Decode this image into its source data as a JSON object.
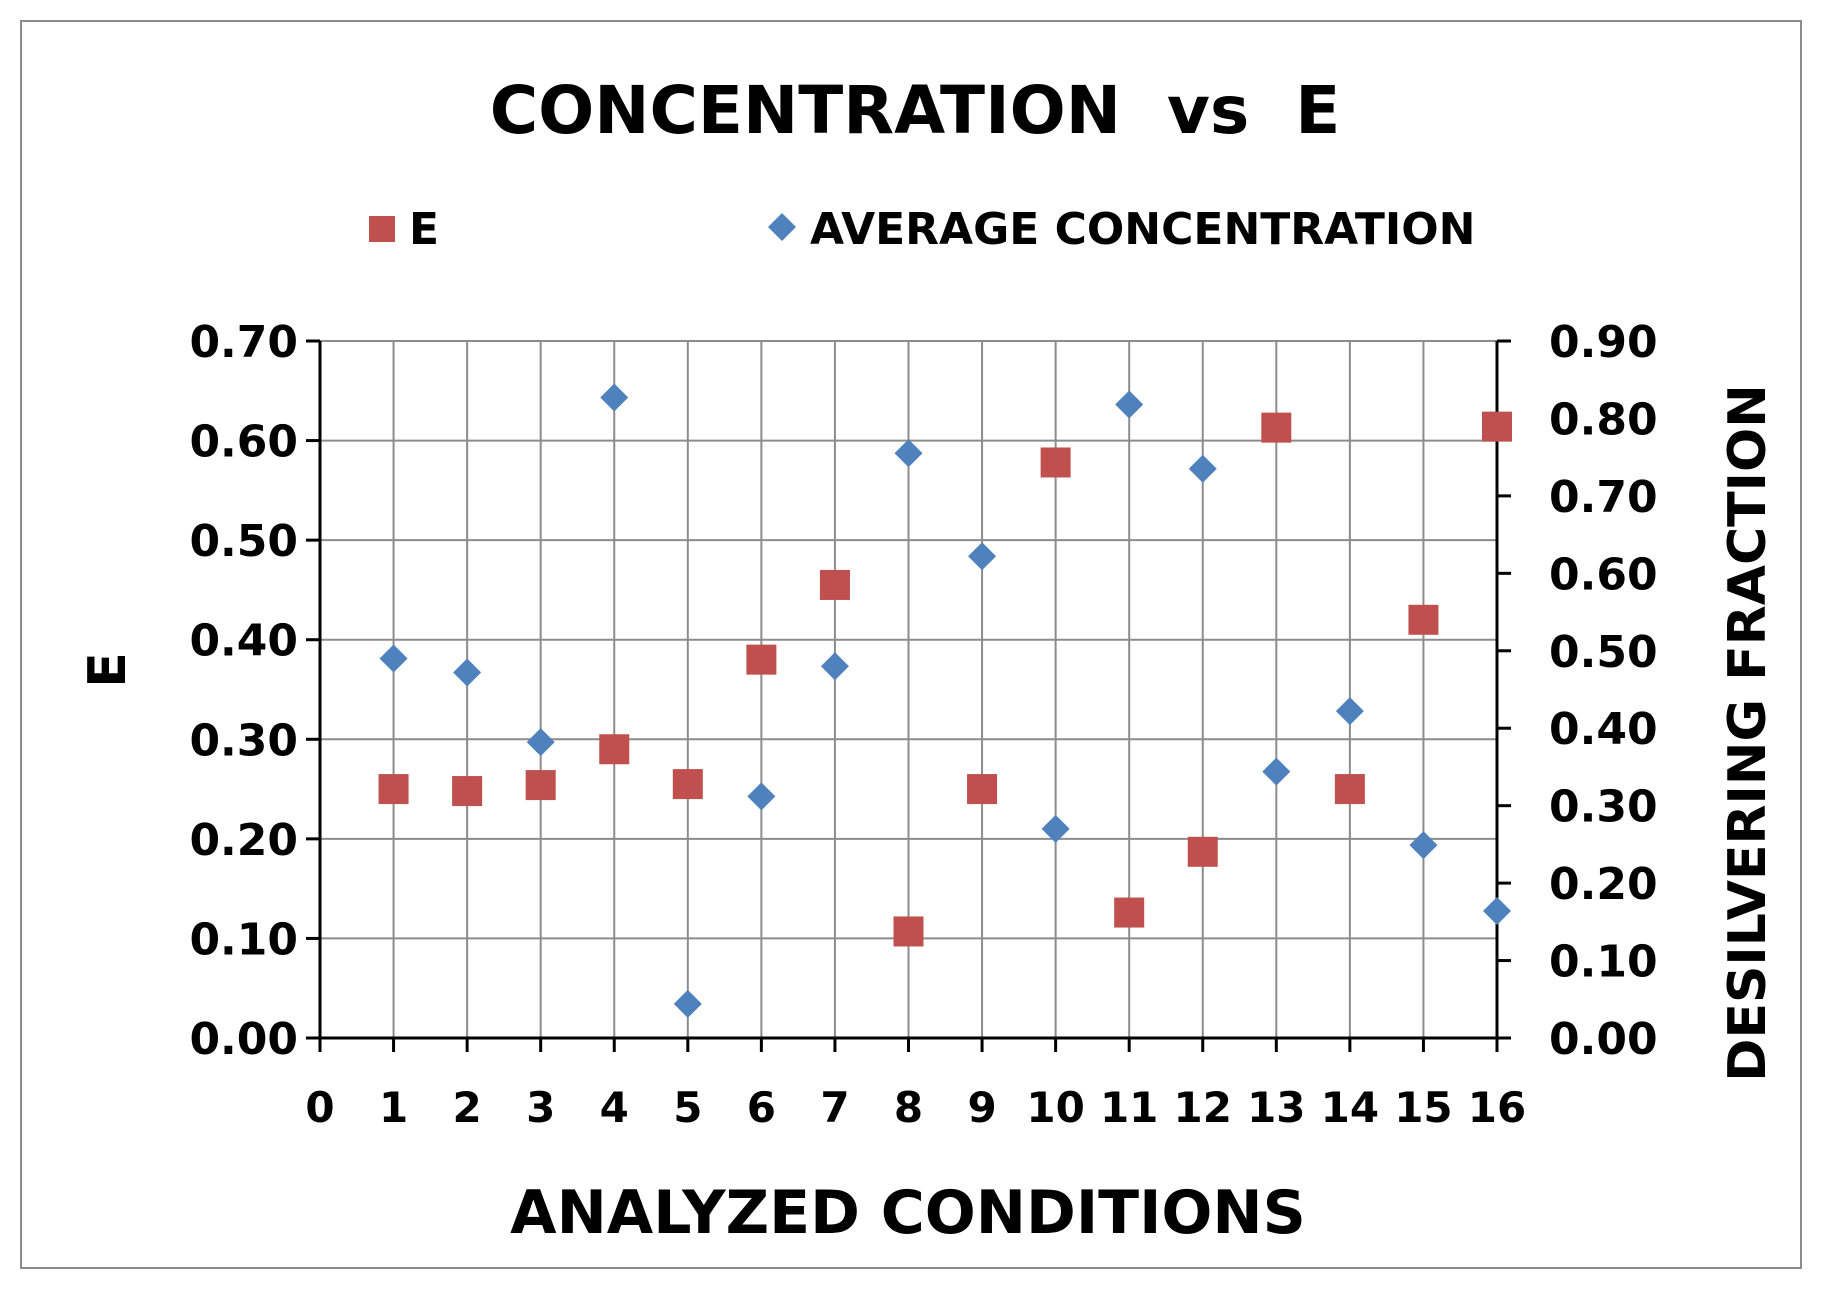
{
  "chart_data": {
    "type": "scatter",
    "title": "CONCENTRATION  vs  E",
    "xlabel": "ANALYZED CONDITIONS",
    "ylabel": "E",
    "y2label": "DESILVERING FRACTION",
    "xlim": [
      0,
      16
    ],
    "ylim": [
      0,
      0.7
    ],
    "y2lim": [
      0,
      0.9
    ],
    "x_ticks": [
      "0",
      "1",
      "2",
      "3",
      "4",
      "5",
      "6",
      "7",
      "8",
      "9",
      "10",
      "11",
      "12",
      "13",
      "14",
      "15",
      "16"
    ],
    "y_ticks": [
      "0.00",
      "0.10",
      "0.20",
      "0.30",
      "0.40",
      "0.50",
      "0.60",
      "0.70"
    ],
    "y2_ticks": [
      "0.00",
      "0.10",
      "0.20",
      "0.30",
      "0.40",
      "0.50",
      "0.60",
      "0.70",
      "0.80",
      "0.90"
    ],
    "grid": true,
    "legend_position": "top",
    "series": [
      {
        "name": "E",
        "axis": "left",
        "marker": "square",
        "color": "#c0504d",
        "x": [
          1,
          2,
          3,
          4,
          5,
          6,
          7,
          8,
          9,
          10,
          11,
          12,
          13,
          14,
          15,
          16
        ],
        "values": [
          0.25,
          0.248,
          0.254,
          0.29,
          0.255,
          0.38,
          0.455,
          0.107,
          0.25,
          0.578,
          0.126,
          0.187,
          0.613,
          0.25,
          0.42,
          0.614
        ]
      },
      {
        "name": "AVERAGE CONCENTRATION",
        "axis": "right",
        "marker": "diamond",
        "color": "#4f81bd",
        "x": [
          1,
          2,
          3,
          4,
          5,
          6,
          7,
          8,
          9,
          10,
          11,
          12,
          13,
          14,
          15,
          16
        ],
        "values": [
          0.49,
          0.472,
          0.382,
          0.827,
          0.044,
          0.312,
          0.48,
          0.755,
          0.622,
          0.27,
          0.818,
          0.735,
          0.344,
          0.422,
          0.249,
          0.164
        ]
      }
    ]
  }
}
